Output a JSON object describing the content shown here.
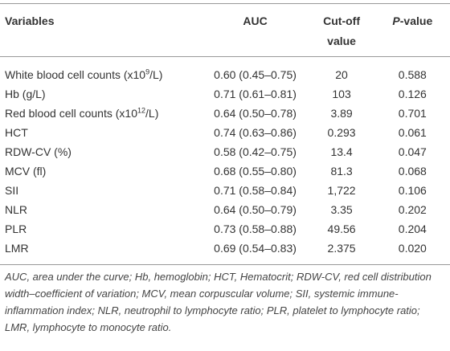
{
  "table": {
    "header": [
      "Variables",
      "AUC",
      "Cut-off value",
      [
        "P",
        "-value"
      ]
    ],
    "rows": [
      [
        [
          "White blood cell counts (x10",
          "9",
          "/L)"
        ],
        "0.60 (0.45–0.75)",
        "20",
        "0.588"
      ],
      [
        "Hb (g/L)",
        "0.71 (0.61–0.81)",
        "103",
        "0.126"
      ],
      [
        [
          "Red blood cell counts (x10",
          "12",
          "/L)"
        ],
        "0.64 (0.50–0.78)",
        "3.89",
        "0.701"
      ],
      [
        "HCT",
        "0.74 (0.63–0.86)",
        "0.293",
        "0.061"
      ],
      [
        "RDW-CV (%)",
        "0.58 (0.42–0.75)",
        "13.4",
        "0.047"
      ],
      [
        "MCV (fl)",
        "0.68 (0.55–0.80)",
        "81.3",
        "0.068"
      ],
      [
        "SII",
        "0.71 (0.58–0.84)",
        "1,722",
        "0.106"
      ],
      [
        "NLR",
        "0.64 (0.50–0.79)",
        "3.35",
        "0.202"
      ],
      [
        "PLR",
        "0.73 (0.58–0.88)",
        "49.56",
        "0.204"
      ],
      [
        "LMR",
        "0.69 (0.54–0.83)",
        "2.375",
        "0.020"
      ]
    ],
    "footnote": "AUC, area under the curve; Hb, hemoglobin; HCT, Hematocrit; RDW-CV, red cell distribution width–coefficient of variation; MCV, mean corpuscular volume; SII, systemic immune-inflammation index; NLR, neutrophil to lymphocyte ratio; PLR, platelet to lymphocyte ratio; LMR, lymphocyte to monocyte ratio."
  }
}
